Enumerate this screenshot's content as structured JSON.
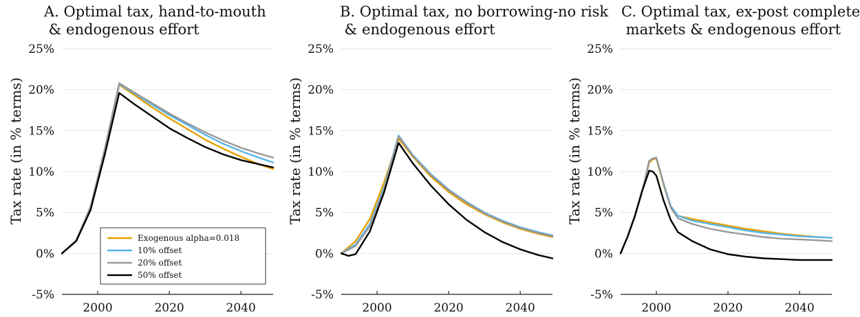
{
  "chart_data": [
    {
      "type": "line",
      "title": [
        "A. Optimal tax, hand-to-mouth",
        " & endogenous effort"
      ],
      "ylabel": "Tax rate (in % terms)",
      "xlim": [
        1990,
        2049
      ],
      "ylim": [
        -5,
        25
      ],
      "xticks": [
        2000,
        2020,
        2040
      ],
      "yticks": [
        25,
        20,
        15,
        10,
        5,
        0,
        -5
      ],
      "ytick_labels": [
        "25%",
        "20%",
        "15%",
        "10%",
        "5%",
        "0%",
        "-5%"
      ],
      "grid": true,
      "legend": "bottom-right",
      "series": [
        {
          "name": "Exogenous alpha=0.018",
          "color": "#E69F00",
          "points": [
            [
              1990,
              0
            ],
            [
              1994,
              1.6
            ],
            [
              1998,
              5.6
            ],
            [
              2002,
              12.6
            ],
            [
              2006,
              20.6
            ],
            [
              2010,
              19.4
            ],
            [
              2015,
              17.9
            ],
            [
              2020,
              16.5
            ],
            [
              2025,
              15.2
            ],
            [
              2030,
              13.9
            ],
            [
              2035,
              12.8
            ],
            [
              2040,
              11.8
            ],
            [
              2045,
              10.9
            ],
            [
              2049,
              10.3
            ]
          ]
        },
        {
          "name": "10% offset",
          "color": "#56B4E9",
          "points": [
            [
              1990,
              0
            ],
            [
              1994,
              1.6
            ],
            [
              1998,
              5.6
            ],
            [
              2002,
              12.7
            ],
            [
              2006,
              20.7
            ],
            [
              2010,
              19.6
            ],
            [
              2015,
              18.2
            ],
            [
              2020,
              16.9
            ],
            [
              2025,
              15.7
            ],
            [
              2030,
              14.5
            ],
            [
              2035,
              13.4
            ],
            [
              2040,
              12.5
            ],
            [
              2045,
              11.7
            ],
            [
              2049,
              11.1
            ]
          ]
        },
        {
          "name": "20% offset",
          "color": "#999999",
          "points": [
            [
              1990,
              0
            ],
            [
              1994,
              1.6
            ],
            [
              1998,
              5.7
            ],
            [
              2002,
              12.8
            ],
            [
              2006,
              20.8
            ],
            [
              2010,
              19.7
            ],
            [
              2015,
              18.4
            ],
            [
              2020,
              17.1
            ],
            [
              2025,
              15.9
            ],
            [
              2030,
              14.8
            ],
            [
              2035,
              13.8
            ],
            [
              2040,
              12.9
            ],
            [
              2045,
              12.2
            ],
            [
              2049,
              11.7
            ]
          ]
        },
        {
          "name": "50% offset",
          "color": "#000000",
          "points": [
            [
              1990,
              0
            ],
            [
              1994,
              1.5
            ],
            [
              1998,
              5.3
            ],
            [
              2002,
              12.1
            ],
            [
              2006,
              19.6
            ],
            [
              2010,
              18.3
            ],
            [
              2015,
              16.8
            ],
            [
              2020,
              15.3
            ],
            [
              2025,
              14.1
            ],
            [
              2030,
              13.0
            ],
            [
              2035,
              12.1
            ],
            [
              2040,
              11.4
            ],
            [
              2045,
              10.9
            ],
            [
              2049,
              10.5
            ]
          ]
        }
      ]
    },
    {
      "type": "line",
      "title": [
        "B. Optimal tax, no borrowing-no risk",
        " & endogenous effort"
      ],
      "ylabel": "Tax rate (in % terms)",
      "xlim": [
        1990,
        2049
      ],
      "ylim": [
        -5,
        25
      ],
      "xticks": [
        2000,
        2020,
        2040
      ],
      "yticks": [
        25,
        20,
        15,
        10,
        5,
        0,
        -5
      ],
      "ytick_labels": [
        "25%",
        "20%",
        "15%",
        "10%",
        "5%",
        "0%",
        "-5%"
      ],
      "grid": true,
      "series": [
        {
          "name": "Exogenous alpha=0.018",
          "color": "#E69F00",
          "points": [
            [
              1990,
              0
            ],
            [
              1994,
              1.5
            ],
            [
              1998,
              4.2
            ],
            [
              2002,
              8.7
            ],
            [
              2006,
              14.0
            ],
            [
              2010,
              11.8
            ],
            [
              2015,
              9.4
            ],
            [
              2020,
              7.5
            ],
            [
              2025,
              6.0
            ],
            [
              2030,
              4.8
            ],
            [
              2035,
              3.8
            ],
            [
              2040,
              3.0
            ],
            [
              2045,
              2.4
            ],
            [
              2049,
              2.0
            ]
          ]
        },
        {
          "name": "10% offset",
          "color": "#56B4E9",
          "points": [
            [
              1990,
              0
            ],
            [
              1994,
              1.1
            ],
            [
              1998,
              3.6
            ],
            [
              2002,
              8.1
            ],
            [
              2006,
              14.4
            ],
            [
              2010,
              12.0
            ],
            [
              2015,
              9.7
            ],
            [
              2020,
              7.8
            ],
            [
              2025,
              6.3
            ],
            [
              2030,
              5.0
            ],
            [
              2035,
              4.0
            ],
            [
              2040,
              3.2
            ],
            [
              2045,
              2.6
            ],
            [
              2049,
              2.2
            ]
          ]
        },
        {
          "name": "20% offset",
          "color": "#999999",
          "points": [
            [
              1990,
              0
            ],
            [
              1994,
              0.9
            ],
            [
              1998,
              3.3
            ],
            [
              2002,
              7.8
            ],
            [
              2006,
              14.3
            ],
            [
              2010,
              11.9
            ],
            [
              2015,
              9.6
            ],
            [
              2020,
              7.7
            ],
            [
              2025,
              6.2
            ],
            [
              2030,
              4.9
            ],
            [
              2035,
              3.9
            ],
            [
              2040,
              3.1
            ],
            [
              2045,
              2.5
            ],
            [
              2049,
              2.1
            ]
          ]
        },
        {
          "name": "50% offset",
          "color": "#000000",
          "points": [
            [
              1990,
              0
            ],
            [
              1992,
              -0.3
            ],
            [
              1994,
              -0.1
            ],
            [
              1998,
              2.7
            ],
            [
              2002,
              7.5
            ],
            [
              2006,
              13.5
            ],
            [
              2010,
              11.0
            ],
            [
              2015,
              8.3
            ],
            [
              2020,
              6.0
            ],
            [
              2025,
              4.1
            ],
            [
              2030,
              2.6
            ],
            [
              2035,
              1.4
            ],
            [
              2040,
              0.5
            ],
            [
              2045,
              -0.2
            ],
            [
              2049,
              -0.6
            ]
          ]
        }
      ]
    },
    {
      "type": "line",
      "title": [
        "C. Optimal tax, ex-post complete",
        " markets & endogenous effort"
      ],
      "ylabel": "Tax rate (in % terms)",
      "xlim": [
        1990,
        2049
      ],
      "ylim": [
        -5,
        25
      ],
      "xticks": [
        2000,
        2020,
        2040
      ],
      "yticks": [
        25,
        20,
        15,
        10,
        5,
        0,
        -5
      ],
      "ytick_labels": [
        "25%",
        "20%",
        "15%",
        "10%",
        "5%",
        "0%",
        "-5%"
      ],
      "grid": true,
      "series": [
        {
          "name": "Exogenous alpha=0.018",
          "color": "#E69F00",
          "points": [
            [
              1990,
              0
            ],
            [
              1992,
              2.1
            ],
            [
              1994,
              4.5
            ],
            [
              1996,
              7.5
            ],
            [
              1998,
              11.1
            ],
            [
              1999,
              11.5
            ],
            [
              2000,
              11.6
            ],
            [
              2002,
              8.4
            ],
            [
              2004,
              5.7
            ],
            [
              2006,
              4.6
            ],
            [
              2010,
              4.2
            ],
            [
              2015,
              3.8
            ],
            [
              2020,
              3.4
            ],
            [
              2025,
              3.0
            ],
            [
              2030,
              2.7
            ],
            [
              2035,
              2.4
            ],
            [
              2040,
              2.2
            ],
            [
              2045,
              2.0
            ],
            [
              2049,
              1.9
            ]
          ]
        },
        {
          "name": "10% offset",
          "color": "#56B4E9",
          "points": [
            [
              1990,
              0
            ],
            [
              1992,
              2.1
            ],
            [
              1994,
              4.5
            ],
            [
              1996,
              7.5
            ],
            [
              1998,
              11.3
            ],
            [
              1999,
              11.6
            ],
            [
              2000,
              11.7
            ],
            [
              2002,
              8.6
            ],
            [
              2004,
              5.8
            ],
            [
              2006,
              4.6
            ],
            [
              2010,
              4.0
            ],
            [
              2015,
              3.6
            ],
            [
              2020,
              3.2
            ],
            [
              2025,
              2.8
            ],
            [
              2030,
              2.5
            ],
            [
              2035,
              2.3
            ],
            [
              2040,
              2.1
            ],
            [
              2045,
              2.0
            ],
            [
              2049,
              1.9
            ]
          ]
        },
        {
          "name": "20% offset",
          "color": "#999999",
          "points": [
            [
              1990,
              0
            ],
            [
              1992,
              2.1
            ],
            [
              1994,
              4.5
            ],
            [
              1996,
              7.5
            ],
            [
              1998,
              11.3
            ],
            [
              1999,
              11.6
            ],
            [
              2000,
              11.7
            ],
            [
              2002,
              8.5
            ],
            [
              2004,
              5.6
            ],
            [
              2006,
              4.3
            ],
            [
              2010,
              3.6
            ],
            [
              2015,
              3.0
            ],
            [
              2020,
              2.6
            ],
            [
              2025,
              2.3
            ],
            [
              2030,
              2.0
            ],
            [
              2035,
              1.8
            ],
            [
              2040,
              1.7
            ],
            [
              2045,
              1.6
            ],
            [
              2049,
              1.5
            ]
          ]
        },
        {
          "name": "50% offset",
          "color": "#000000",
          "points": [
            [
              1990,
              0
            ],
            [
              1992,
              2.1
            ],
            [
              1994,
              4.6
            ],
            [
              1996,
              7.6
            ],
            [
              1998,
              10.1
            ],
            [
              1999,
              10.0
            ],
            [
              2000,
              9.5
            ],
            [
              2002,
              6.5
            ],
            [
              2004,
              4.1
            ],
            [
              2006,
              2.6
            ],
            [
              2010,
              1.5
            ],
            [
              2015,
              0.5
            ],
            [
              2020,
              -0.1
            ],
            [
              2025,
              -0.4
            ],
            [
              2030,
              -0.6
            ],
            [
              2035,
              -0.7
            ],
            [
              2040,
              -0.8
            ],
            [
              2045,
              -0.8
            ],
            [
              2049,
              -0.8
            ]
          ]
        }
      ]
    }
  ]
}
